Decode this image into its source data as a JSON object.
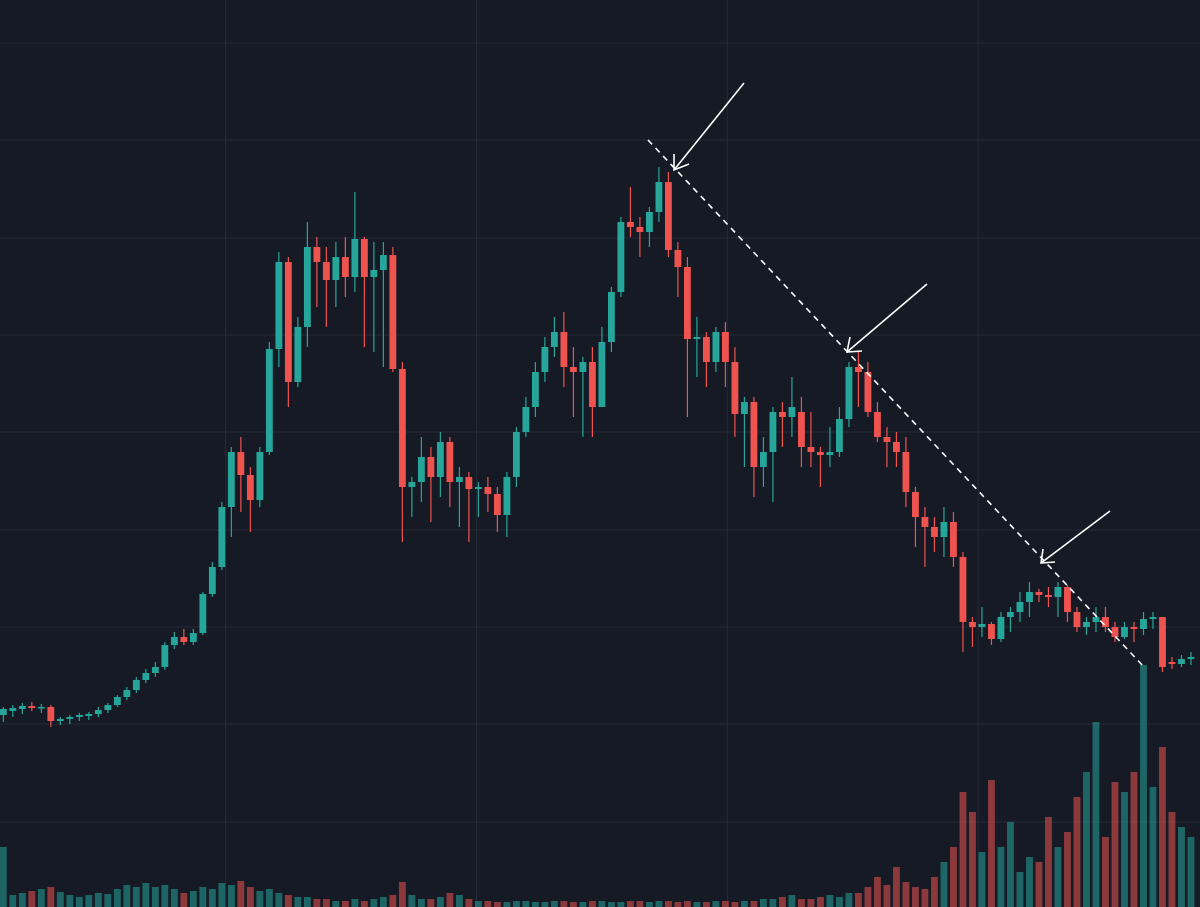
{
  "chart_data": {
    "type": "candlestick",
    "up_color": "#26a69a",
    "down_color": "#ef5350",
    "volume_up_color": "#26a69a",
    "volume_down_color": "#ef5350",
    "grid": true,
    "xlim": [
      -0.35,
      125.95
    ],
    "xticks": [
      23.4,
      49.8,
      76.2,
      102.6
    ],
    "ylim": [
      0,
      907
    ],
    "yticks": [
      85,
      183,
      280,
      377,
      475,
      572,
      669,
      767,
      864
    ],
    "y2lim": [
      0,
      907
    ],
    "open": [
      192,
      196,
      198,
      201,
      199,
      200,
      186,
      188,
      190,
      191,
      193,
      197,
      202,
      210,
      217,
      227,
      234,
      240,
      262,
      270,
      265,
      274,
      313,
      340,
      400,
      455,
      432,
      407,
      455,
      558,
      645,
      525,
      580,
      660,
      645,
      627,
      650,
      630,
      668,
      630,
      637,
      652,
      538,
      420,
      425,
      450,
      430,
      465,
      425,
      430,
      418,
      420,
      413,
      392,
      430,
      475,
      500,
      535,
      560,
      575,
      540,
      535,
      545,
      500,
      565,
      615,
      685,
      680,
      675,
      695,
      725,
      657,
      640,
      568,
      570,
      545,
      575,
      545,
      493,
      505,
      440,
      455,
      495,
      490,
      495,
      460,
      455,
      452,
      455,
      488,
      540,
      535,
      495,
      470,
      465,
      455,
      415,
      390,
      380,
      370,
      385,
      350,
      285,
      280,
      283,
      268,
      290,
      295,
      305,
      315,
      312,
      310,
      320,
      295,
      280,
      285,
      290,
      280,
      270,
      280,
      278,
      288,
      290,
      245,
      243,
      248
    ],
    "high": [
      200,
      202,
      204,
      205,
      203,
      202,
      190,
      192,
      194,
      195,
      200,
      204,
      212,
      220,
      230,
      238,
      245,
      265,
      275,
      278,
      278,
      315,
      345,
      405,
      460,
      470,
      440,
      460,
      565,
      655,
      650,
      590,
      685,
      670,
      660,
      665,
      670,
      715,
      670,
      665,
      665,
      660,
      545,
      430,
      470,
      460,
      475,
      470,
      440,
      435,
      425,
      430,
      420,
      435,
      480,
      510,
      545,
      570,
      590,
      595,
      560,
      550,
      560,
      580,
      620,
      690,
      720,
      690,
      700,
      740,
      735,
      665,
      650,
      590,
      575,
      580,
      585,
      560,
      510,
      510,
      470,
      500,
      505,
      530,
      510,
      495,
      460,
      480,
      500,
      545,
      555,
      545,
      505,
      480,
      475,
      470,
      420,
      400,
      390,
      400,
      395,
      355,
      290,
      300,
      285,
      295,
      300,
      315,
      325,
      318,
      320,
      325,
      322,
      300,
      290,
      300,
      300,
      285,
      285,
      285,
      295,
      295,
      290,
      250,
      252,
      255
    ],
    "low": [
      185,
      190,
      193,
      196,
      194,
      180,
      182,
      183,
      186,
      187,
      190,
      194,
      200,
      207,
      214,
      224,
      230,
      237,
      258,
      262,
      262,
      272,
      310,
      337,
      370,
      395,
      375,
      400,
      452,
      540,
      500,
      520,
      560,
      600,
      580,
      600,
      610,
      615,
      560,
      555,
      540,
      535,
      365,
      390,
      405,
      385,
      410,
      400,
      380,
      365,
      390,
      395,
      375,
      370,
      420,
      470,
      490,
      525,
      550,
      520,
      490,
      470,
      470,
      500,
      555,
      610,
      670,
      650,
      660,
      685,
      650,
      610,
      490,
      530,
      520,
      535,
      520,
      470,
      440,
      410,
      420,
      405,
      460,
      470,
      440,
      440,
      420,
      440,
      450,
      480,
      500,
      490,
      465,
      440,
      440,
      400,
      360,
      340,
      355,
      350,
      340,
      255,
      260,
      270,
      262,
      265,
      275,
      285,
      290,
      305,
      300,
      290,
      285,
      275,
      272,
      275,
      275,
      265,
      268,
      265,
      272,
      278,
      235,
      238,
      240,
      242
    ],
    "close": [
      198,
      199,
      201,
      199,
      200,
      186,
      188,
      190,
      192,
      193,
      197,
      202,
      210,
      217,
      227,
      234,
      240,
      262,
      270,
      265,
      274,
      313,
      340,
      400,
      455,
      432,
      407,
      455,
      558,
      645,
      525,
      580,
      660,
      645,
      627,
      650,
      630,
      668,
      630,
      637,
      652,
      538,
      420,
      425,
      450,
      430,
      465,
      425,
      430,
      418,
      420,
      413,
      392,
      430,
      475,
      500,
      535,
      560,
      575,
      540,
      535,
      545,
      500,
      565,
      615,
      685,
      680,
      675,
      695,
      725,
      657,
      640,
      568,
      570,
      545,
      575,
      545,
      493,
      505,
      440,
      455,
      495,
      490,
      500,
      460,
      455,
      452,
      455,
      488,
      540,
      535,
      495,
      470,
      465,
      455,
      415,
      390,
      380,
      370,
      385,
      350,
      285,
      280,
      283,
      268,
      290,
      295,
      305,
      315,
      312,
      310,
      320,
      295,
      280,
      285,
      290,
      280,
      270,
      280,
      278,
      288,
      290,
      240,
      243,
      248,
      250
    ],
    "volume": [
      60,
      12,
      14,
      16,
      18,
      20,
      15,
      12,
      10,
      12,
      14,
      13,
      18,
      22,
      20,
      24,
      20,
      22,
      18,
      14,
      16,
      20,
      18,
      24,
      22,
      26,
      20,
      16,
      18,
      14,
      12,
      10,
      10,
      8,
      8,
      6,
      6,
      8,
      6,
      8,
      10,
      12,
      25,
      12,
      8,
      8,
      10,
      14,
      12,
      8,
      6,
      6,
      5,
      5,
      6,
      6,
      5,
      5,
      6,
      6,
      5,
      5,
      6,
      6,
      5,
      5,
      6,
      6,
      5,
      6,
      6,
      5,
      6,
      5,
      5,
      6,
      6,
      5,
      6,
      6,
      8,
      8,
      10,
      12,
      8,
      8,
      10,
      12,
      10,
      14,
      14,
      20,
      30,
      22,
      40,
      25,
      20,
      18,
      30,
      45,
      60,
      115,
      95,
      55,
      127,
      60,
      85,
      35,
      50,
      45,
      90,
      60,
      75,
      110,
      135,
      185,
      70,
      125,
      115,
      135,
      242,
      120,
      160,
      95,
      80,
      70
    ]
  }
}
